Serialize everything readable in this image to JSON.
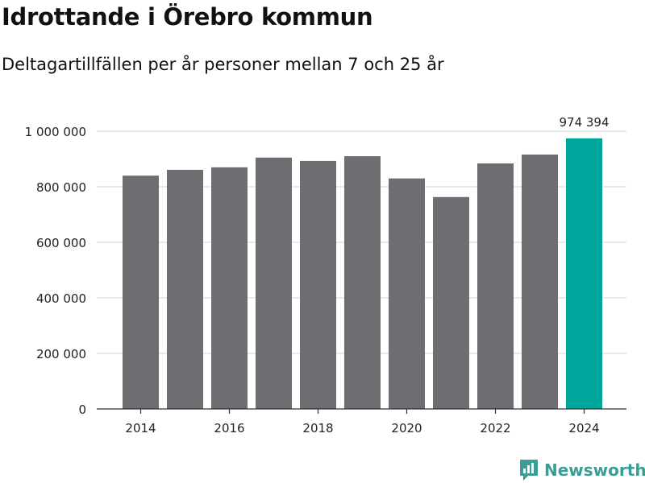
{
  "title": "Idrottande i Örebro kommun",
  "subtitle": "Deltagartillfällen per år personer mellan 7 och 25 år",
  "brand": {
    "name": "Newsworthy",
    "icon": "newsworthy-logo-icon",
    "color": "#3a9e96"
  },
  "chart_data": {
    "type": "bar",
    "categories": [
      "2014",
      "2015",
      "2016",
      "2017",
      "2018",
      "2019",
      "2020",
      "2021",
      "2022",
      "2023",
      "2024"
    ],
    "values": [
      840000,
      861000,
      870000,
      905000,
      893000,
      910000,
      830000,
      763000,
      884000,
      916000,
      974394
    ],
    "ylim": [
      0,
      1000000
    ],
    "yticks": [
      0,
      200000,
      400000,
      600000,
      800000,
      1000000
    ],
    "ytick_labels": [
      "0",
      "200 000",
      "400 000",
      "600 000",
      "800 000",
      "1 000 000"
    ],
    "xtick_labels": [
      "2014",
      "2016",
      "2018",
      "2020",
      "2022",
      "2024"
    ],
    "highlight_index": 10,
    "data_labels": [
      {
        "index": 10,
        "text": "974 394"
      }
    ],
    "colors": {
      "bar": "#6e6d72",
      "highlight": "#00a59b",
      "grid": "#dcdcdc",
      "axis": "#333333"
    },
    "grid": true,
    "legend": "none"
  }
}
